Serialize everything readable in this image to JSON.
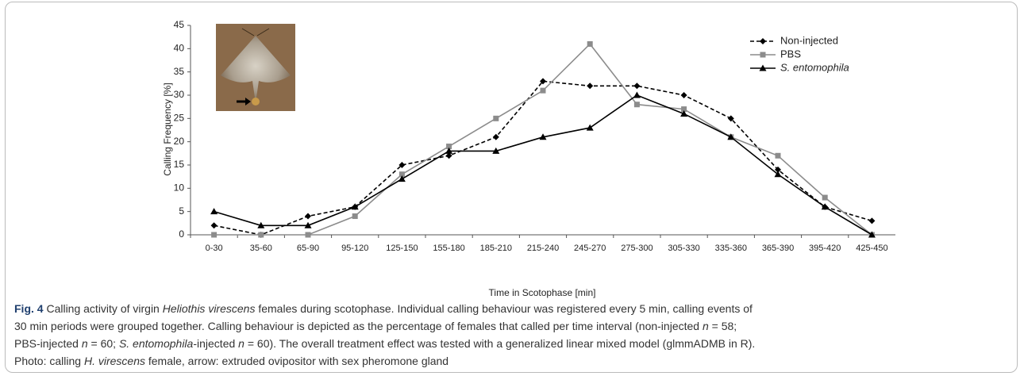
{
  "chart_data": {
    "type": "line",
    "ylabel": "Calling Frequency [%]",
    "xlabel": "Time in Scotophase [min]",
    "categories": [
      "0-30",
      "35-60",
      "65-90",
      "95-120",
      "125-150",
      "155-180",
      "185-210",
      "215-240",
      "245-270",
      "275-300",
      "305-330",
      "335-360",
      "365-390",
      "395-420",
      "425-450"
    ],
    "series": [
      {
        "name": "Non-injected",
        "color": "#000000",
        "dash": true,
        "marker": "diamond",
        "values": [
          2,
          0,
          4,
          6,
          15,
          17,
          21,
          33,
          32,
          32,
          30,
          25,
          14,
          6,
          3
        ]
      },
      {
        "name": "PBS",
        "color": "#8c8c8c",
        "dash": false,
        "marker": "square",
        "values": [
          0,
          0,
          0,
          4,
          13,
          19,
          25,
          31,
          41,
          28,
          27,
          21,
          17,
          8,
          0
        ]
      },
      {
        "name": "S. entomophila",
        "color": "#000000",
        "dash": false,
        "marker": "triangle",
        "italic": true,
        "values": [
          5,
          2,
          2,
          6,
          12,
          18,
          18,
          21,
          23,
          30,
          26,
          21,
          13,
          6,
          0
        ]
      }
    ],
    "ylim": [
      0,
      45
    ],
    "yticks": [
      0,
      5,
      10,
      15,
      20,
      25,
      30,
      35,
      40,
      45
    ],
    "legend": "upper right"
  },
  "caption_lines": [
    [
      {
        "text": "Fig. 4",
        "style": "bold"
      },
      {
        "text": " Calling activity of virgin ",
        "style": "normal"
      },
      {
        "text": "Heliothis virescens",
        "style": "italic"
      },
      {
        "text": " females during scotophase. Individual calling behaviour was registered every 5 min, calling events of",
        "style": "normal"
      }
    ],
    [
      {
        "text": "30 min periods were grouped together. Calling behaviour is depicted as the percentage of females that called per time interval (non-injected ",
        "style": "normal"
      },
      {
        "text": "n",
        "style": "italic"
      },
      {
        "text": " = 58;",
        "style": "normal"
      }
    ],
    [
      {
        "text": "PBS-injected ",
        "style": "normal"
      },
      {
        "text": "n",
        "style": "italic"
      },
      {
        "text": " = 60; ",
        "style": "normal"
      },
      {
        "text": "S. entomophila",
        "style": "italic"
      },
      {
        "text": "-injected ",
        "style": "normal"
      },
      {
        "text": "n",
        "style": "italic"
      },
      {
        "text": " = 60). The overall treatment effect was tested with a generalized linear mixed model (glmmADMB in R).",
        "style": "normal"
      }
    ],
    [
      {
        "text": "Photo: calling ",
        "style": "normal"
      },
      {
        "text": "H. virescens",
        "style": "italic"
      },
      {
        "text": " female, arrow: extruded ovipositor with sex pheromone gland",
        "style": "normal"
      }
    ]
  ]
}
